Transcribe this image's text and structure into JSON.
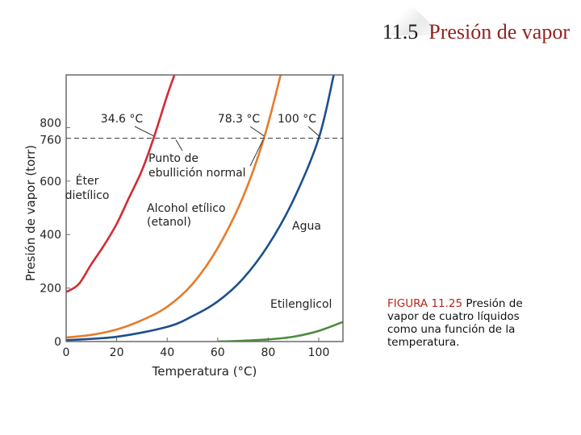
{
  "header": {
    "section_number": "11.5",
    "section_title": "Presión de vapor"
  },
  "caption": {
    "label": "FIGURA 11.25",
    "text": "Presión de vapor de cuatro líquidos como una función de la temperatura."
  },
  "chart_data": {
    "type": "line",
    "xlabel": "Temperatura (°C)",
    "ylabel": "Presión de vapor (torr)",
    "xlim": [
      0,
      110
    ],
    "ylim": [
      0,
      1000
    ],
    "x_ticks": [
      0,
      20,
      40,
      60,
      80,
      100
    ],
    "y_ticks": [
      0,
      200,
      400,
      600,
      760,
      800
    ],
    "grid": false,
    "reference_line": {
      "y": 760,
      "style": "dashed"
    },
    "series": [
      {
        "name": "Éter dietílico",
        "color": "#d42a34",
        "x": [
          0,
          5,
          10,
          15,
          20,
          25,
          30,
          34.6,
          40,
          43
        ],
        "y": [
          185,
          215,
          290,
          360,
          440,
          540,
          640,
          760,
          920,
          1000
        ]
      },
      {
        "name": "Alcohol etílico (etanol)",
        "color": "#e57b2c",
        "x": [
          0,
          10,
          20,
          30,
          40,
          50,
          60,
          70,
          78.3,
          85
        ],
        "y": [
          15,
          25,
          45,
          80,
          130,
          215,
          350,
          540,
          760,
          1000
        ]
      },
      {
        "name": "Agua",
        "color": "#1d4f8c",
        "x": [
          0,
          20,
          40,
          50,
          60,
          70,
          80,
          90,
          100,
          106
        ],
        "y": [
          5,
          18,
          55,
          95,
          150,
          235,
          360,
          530,
          760,
          1000
        ]
      },
      {
        "name": "Etilenglicol",
        "color": "#4c8b3b",
        "x": [
          60,
          70,
          80,
          90,
          100,
          110
        ],
        "y": [
          0,
          3,
          8,
          18,
          40,
          75
        ]
      }
    ],
    "annotations": [
      {
        "text": "34.6 °C",
        "x": 34.6
      },
      {
        "text": "78.3 °C",
        "x": 78.3
      },
      {
        "text": "100 °C",
        "x": 100
      },
      {
        "text": "Punto de",
        "line2": "ebullición normal"
      }
    ]
  }
}
